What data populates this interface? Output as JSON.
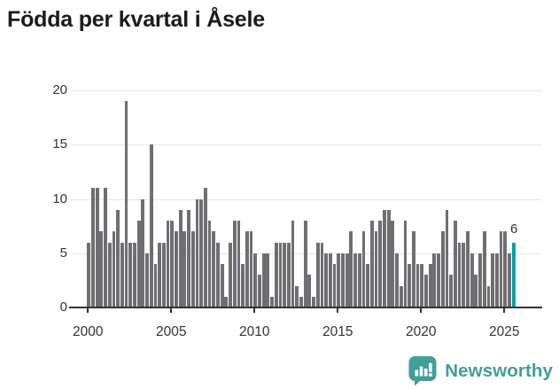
{
  "title": "Födda per kvartal i Åsele",
  "colors": {
    "bar": "#6e6e73",
    "highlight": "#00a2a2",
    "grid": "#e6e6e6",
    "axis": "#333333",
    "title_text": "#1a1a1a",
    "brand": "#419e99",
    "background": "#ffffff"
  },
  "y_axis": {
    "tick_labels": [
      "0",
      "5",
      "10",
      "15",
      "20"
    ],
    "tick_values": [
      0,
      5,
      10,
      15,
      20
    ],
    "range": [
      0,
      20
    ]
  },
  "x_axis": {
    "tick_labels": [
      "2000",
      "2005",
      "2010",
      "2015",
      "2020",
      "2025"
    ],
    "quarters_per_tick": 20
  },
  "annotation": {
    "last_value_label": "6"
  },
  "branding": {
    "name": "Newsworthy",
    "icon": "newsworthy-bubble-chart-icon"
  },
  "chart_data": {
    "type": "bar",
    "title": "Födda per kvartal i Åsele",
    "x_start": "2000-Q1",
    "x_end": "2025-Q3",
    "frequency": "quarterly",
    "ylim": [
      0,
      20
    ],
    "grid": true,
    "legend": false,
    "highlight_last": true,
    "last_value": 6,
    "values": [
      6,
      11,
      11,
      7,
      11,
      6,
      7,
      9,
      6,
      19,
      6,
      6,
      8,
      10,
      5,
      15,
      4,
      6,
      6,
      8,
      8,
      7,
      9,
      7,
      9,
      7,
      10,
      10,
      11,
      8,
      7,
      6,
      4,
      1,
      6,
      8,
      8,
      4,
      7,
      7,
      5,
      3,
      5,
      5,
      1,
      6,
      6,
      6,
      6,
      8,
      2,
      1,
      8,
      3,
      1,
      6,
      6,
      5,
      5,
      4,
      5,
      5,
      5,
      7,
      5,
      5,
      7,
      4,
      8,
      7,
      8,
      9,
      9,
      8,
      5,
      2,
      8,
      4,
      7,
      4,
      4,
      3,
      4,
      5,
      5,
      7,
      9,
      3,
      8,
      6,
      6,
      7,
      5,
      3,
      5,
      7,
      2,
      5,
      5,
      7,
      7,
      5,
      6
    ]
  }
}
